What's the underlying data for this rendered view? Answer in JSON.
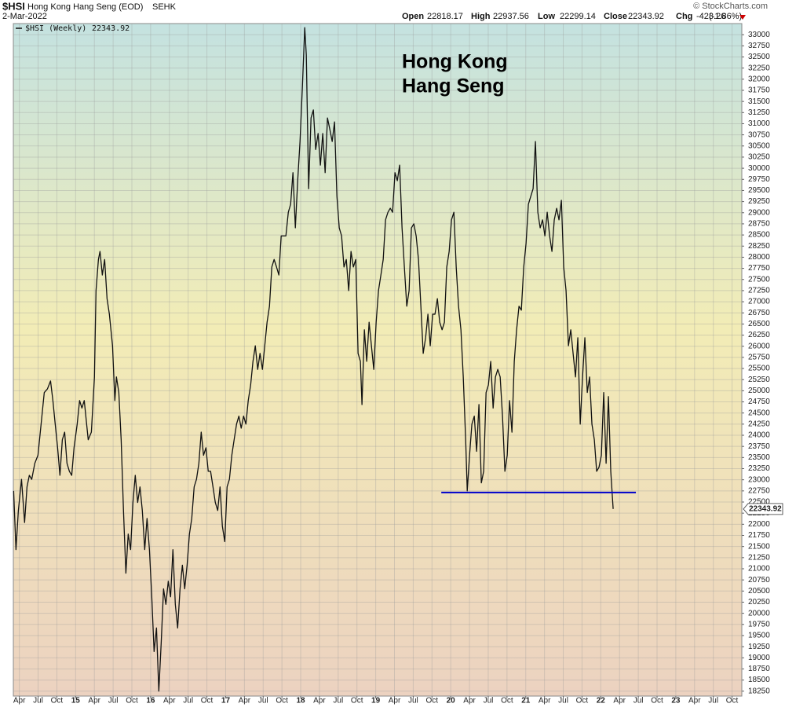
{
  "header": {
    "symbol": "$HSI",
    "name": "Hong Kong Hang Seng (EOD)",
    "exchange": "SEHK",
    "date": "2-Mar-2022",
    "watermark": "© StockCharts.com",
    "quote": [
      {
        "label": "Open",
        "value": 22818.17
      },
      {
        "label": "High",
        "value": 22937.56
      },
      {
        "label": "Low",
        "value": 22299.14
      },
      {
        "label": "Close",
        "value": 22343.92
      },
      {
        "label": "Chg",
        "value": -423.26
      }
    ],
    "change_pct": "(-1.86%)"
  },
  "chart_data": {
    "type": "line",
    "annotation_title": [
      "Hong Kong",
      "Hang Seng"
    ],
    "x": [
      2014.174,
      2014.205,
      2014.237,
      2014.279,
      2014.32,
      2014.352,
      2014.383,
      2014.415,
      2014.456,
      2014.498,
      2014.54,
      2014.582,
      2014.624,
      2014.666,
      2014.697,
      2014.728,
      2014.76,
      2014.791,
      2014.823,
      2014.854,
      2014.885,
      2014.917,
      2014.948,
      2014.979,
      2015.021,
      2015.053,
      2015.084,
      2015.115,
      2015.168,
      2015.21,
      2015.251,
      2015.272,
      2015.304,
      2015.325,
      2015.356,
      2015.387,
      2015.419,
      2015.45,
      2015.492,
      2015.523,
      2015.544,
      2015.576,
      2015.607,
      2015.638,
      2015.67,
      2015.701,
      2015.733,
      2015.764,
      2015.795,
      2015.827,
      2015.858,
      2015.889,
      2015.921,
      2015.952,
      2015.984,
      2016.015,
      2016.046,
      2016.078,
      2016.109,
      2016.14,
      2016.172,
      2016.203,
      2016.235,
      2016.266,
      2016.297,
      2016.329,
      2016.36,
      2016.392,
      2016.423,
      2016.454,
      2016.486,
      2016.517,
      2016.548,
      2016.58,
      2016.611,
      2016.643,
      2016.674,
      2016.705,
      2016.737,
      2016.768,
      2016.799,
      2016.831,
      2016.862,
      2016.894,
      2016.925,
      2016.956,
      2016.988,
      2017.019,
      2017.05,
      2017.082,
      2017.113,
      2017.145,
      2017.176,
      2017.207,
      2017.239,
      2017.27,
      2017.301,
      2017.333,
      2017.364,
      2017.395,
      2017.427,
      2017.458,
      2017.49,
      2017.521,
      2017.552,
      2017.584,
      2017.615,
      2017.646,
      2017.678,
      2017.709,
      2017.74,
      2017.772,
      2017.803,
      2017.835,
      2017.866,
      2017.897,
      2017.929,
      2017.96,
      2017.991,
      2018.023,
      2018.054,
      2018.075,
      2018.106,
      2018.138,
      2018.169,
      2018.2,
      2018.232,
      2018.263,
      2018.294,
      2018.326,
      2018.357,
      2018.389,
      2018.42,
      2018.451,
      2018.483,
      2018.514,
      2018.545,
      2018.577,
      2018.608,
      2018.64,
      2018.671,
      2018.702,
      2018.734,
      2018.765,
      2018.796,
      2018.817,
      2018.849,
      2018.88,
      2018.912,
      2018.943,
      2018.974,
      2019.006,
      2019.037,
      2019.069,
      2019.1,
      2019.131,
      2019.163,
      2019.194,
      2019.225,
      2019.257,
      2019.288,
      2019.319,
      2019.351,
      2019.382,
      2019.414,
      2019.445,
      2019.476,
      2019.508,
      2019.539,
      2019.57,
      2019.602,
      2019.633,
      2019.665,
      2019.696,
      2019.727,
      2019.759,
      2019.79,
      2019.822,
      2019.853,
      2019.885,
      2019.916,
      2019.947,
      2019.979,
      2020.01,
      2020.042,
      2020.073,
      2020.104,
      2020.136,
      2020.167,
      2020.199,
      2020.22,
      2020.251,
      2020.282,
      2020.314,
      2020.345,
      2020.376,
      2020.408,
      2020.439,
      2020.471,
      2020.502,
      2020.533,
      2020.565,
      2020.596,
      2020.627,
      2020.659,
      2020.69,
      2020.722,
      2020.753,
      2020.784,
      2020.816,
      2020.847,
      2020.878,
      2020.91,
      2020.941,
      2020.973,
      2021.004,
      2021.035,
      2021.067,
      2021.098,
      2021.129,
      2021.161,
      2021.192,
      2021.224,
      2021.255,
      2021.286,
      2021.318,
      2021.349,
      2021.38,
      2021.412,
      2021.443,
      2021.475,
      2021.506,
      2021.537,
      2021.569,
      2021.6,
      2021.631,
      2021.663,
      2021.694,
      2021.726,
      2021.757,
      2021.788,
      2021.82,
      2021.851,
      2021.882,
      2021.914,
      2021.945,
      2021.976,
      2022.008,
      2022.039,
      2022.071,
      2022.102,
      2022.133,
      2022.165
    ],
    "series": [
      {
        "name": "$HSI (Weekly)",
        "color": "#111111",
        "values": [
          22750,
          21430,
          22310,
          23010,
          22040,
          22840,
          23100,
          23010,
          23370,
          23550,
          24250,
          24960,
          25040,
          25220,
          24780,
          24250,
          23720,
          23100,
          23900,
          24070,
          23370,
          23190,
          23100,
          23720,
          24250,
          24780,
          24610,
          24780,
          23900,
          24070,
          25310,
          27250,
          27950,
          28130,
          27600,
          27950,
          27070,
          26720,
          26010,
          24780,
          25310,
          24960,
          23900,
          22310,
          20900,
          21780,
          21430,
          22490,
          23100,
          22490,
          22840,
          22310,
          21430,
          22130,
          21430,
          20370,
          19140,
          19670,
          18250,
          19310,
          20550,
          20200,
          20720,
          20370,
          21430,
          20200,
          19670,
          20550,
          21080,
          20550,
          21080,
          21780,
          22130,
          22840,
          23010,
          23370,
          24070,
          23550,
          23720,
          23190,
          23190,
          22840,
          22490,
          22310,
          22840,
          21960,
          21610,
          22840,
          23010,
          23550,
          23900,
          24250,
          24430,
          24160,
          24430,
          24250,
          24780,
          25130,
          25660,
          26010,
          25480,
          25840,
          25480,
          26010,
          26540,
          26900,
          27780,
          27950,
          27780,
          27600,
          28480,
          28480,
          28480,
          29010,
          29190,
          29900,
          28660,
          29720,
          30600,
          31840,
          33160,
          32540,
          29540,
          31130,
          31310,
          30420,
          30780,
          30070,
          30780,
          29900,
          31130,
          30870,
          30600,
          31040,
          29370,
          28660,
          28480,
          27780,
          27950,
          27250,
          28130,
          27780,
          27950,
          25840,
          25660,
          24690,
          26370,
          25660,
          26540,
          26010,
          25480,
          26540,
          27250,
          27600,
          27950,
          28840,
          29010,
          29100,
          29010,
          29900,
          29720,
          30070,
          28660,
          27780,
          26900,
          27250,
          28660,
          28750,
          28480,
          27950,
          26900,
          25840,
          26190,
          26720,
          26010,
          26720,
          26720,
          27070,
          26540,
          26370,
          26540,
          27780,
          28130,
          28840,
          29010,
          27780,
          26900,
          26370,
          25310,
          23900,
          22750,
          23550,
          24250,
          24430,
          23640,
          24690,
          22930,
          23190,
          24960,
          25130,
          25660,
          24610,
          25310,
          25480,
          25310,
          24430,
          23190,
          23550,
          24780,
          24070,
          25660,
          26370,
          26900,
          26810,
          27780,
          28310,
          29190,
          29370,
          29540,
          30600,
          29010,
          28660,
          28840,
          28480,
          29010,
          28480,
          28130,
          28840,
          29100,
          28840,
          29280,
          27780,
          27250,
          26010,
          26370,
          25840,
          25310,
          26190,
          24250,
          25310,
          26190,
          24960,
          25310,
          24250,
          23900,
          23190,
          23280,
          23550,
          24960,
          23370,
          24870,
          23190,
          22343.92
        ]
      }
    ],
    "support": {
      "y": 22715,
      "x": [
        2019.874,
        2022.468
      ],
      "color": "#0000cc"
    },
    "xlim": [
      2014.17,
      2023.88
    ],
    "ylim": [
      18140,
      33250
    ],
    "xticks": [
      {
        "value": 2014.25,
        "label": "Apr"
      },
      {
        "value": 2014.5,
        "label": "Jul"
      },
      {
        "value": 2014.75,
        "label": "Oct"
      },
      {
        "value": 2015,
        "label": "15"
      },
      {
        "value": 2015.25,
        "label": "Apr"
      },
      {
        "value": 2015.5,
        "label": "Jul"
      },
      {
        "value": 2015.75,
        "label": "Oct"
      },
      {
        "value": 2016,
        "label": "16"
      },
      {
        "value": 2016.25,
        "label": "Apr"
      },
      {
        "value": 2016.5,
        "label": "Jul"
      },
      {
        "value": 2016.75,
        "label": "Oct"
      },
      {
        "value": 2017,
        "label": "17"
      },
      {
        "value": 2017.25,
        "label": "Apr"
      },
      {
        "value": 2017.5,
        "label": "Jul"
      },
      {
        "value": 2017.75,
        "label": "Oct"
      },
      {
        "value": 2018,
        "label": "18"
      },
      {
        "value": 2018.25,
        "label": "Apr"
      },
      {
        "value": 2018.5,
        "label": "Jul"
      },
      {
        "value": 2018.75,
        "label": "Oct"
      },
      {
        "value": 2019,
        "label": "19"
      },
      {
        "value": 2019.25,
        "label": "Apr"
      },
      {
        "value": 2019.5,
        "label": "Jul"
      },
      {
        "value": 2019.75,
        "label": "Oct"
      },
      {
        "value": 2020,
        "label": "20"
      },
      {
        "value": 2020.25,
        "label": "Apr"
      },
      {
        "value": 2020.5,
        "label": "Jul"
      },
      {
        "value": 2020.75,
        "label": "Oct"
      },
      {
        "value": 2021,
        "label": "21"
      },
      {
        "value": 2021.25,
        "label": "Apr"
      },
      {
        "value": 2021.5,
        "label": "Jul"
      },
      {
        "value": 2021.75,
        "label": "Oct"
      },
      {
        "value": 2022,
        "label": "22"
      },
      {
        "value": 2022.25,
        "label": "Apr"
      },
      {
        "value": 2022.5,
        "label": "Jul"
      },
      {
        "value": 2022.75,
        "label": "Oct"
      },
      {
        "value": 2023,
        "label": "23"
      },
      {
        "value": 2023.25,
        "label": "Apr"
      },
      {
        "value": 2023.5,
        "label": "Jul"
      },
      {
        "value": 2023.75,
        "label": "Oct"
      }
    ],
    "yticks": [
      18250,
      18500,
      18750,
      19000,
      19250,
      19500,
      19750,
      20000,
      20250,
      20500,
      20750,
      21000,
      21250,
      21500,
      21750,
      22000,
      22250,
      22500,
      22750,
      23000,
      23250,
      23500,
      23750,
      24000,
      24250,
      24500,
      24750,
      25000,
      25250,
      25500,
      25750,
      26000,
      26250,
      26500,
      26750,
      27000,
      27250,
      27500,
      27750,
      28000,
      28250,
      28500,
      28750,
      29000,
      29250,
      29500,
      29750,
      30000,
      30250,
      30500,
      30750,
      31000,
      31250,
      31500,
      31750,
      32000,
      32250,
      32500,
      32750,
      33000
    ],
    "grid": true,
    "y_axis_side": "right"
  }
}
